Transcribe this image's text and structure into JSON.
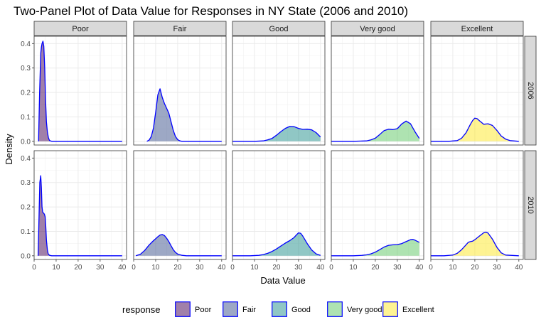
{
  "chart_data": {
    "type": "area",
    "chart_kind": "faceted density plot",
    "title": "Two-Panel Plot of Data Value for Responses in NY State (2006 and 2010)",
    "xlabel": "Data Value",
    "ylabel": "Density",
    "xlim": [
      0,
      42
    ],
    "ylim": [
      -0.015,
      0.43
    ],
    "x_ticks": [
      0,
      10,
      20,
      30,
      40
    ],
    "y_ticks": [
      0.0,
      0.1,
      0.2,
      0.3,
      0.4
    ],
    "x_tick_labels": [
      "0",
      "10",
      "20",
      "30",
      "40"
    ],
    "y_tick_labels": [
      "0.0",
      "0.1",
      "0.2",
      "0.3",
      "0.4"
    ],
    "grid": true,
    "fill_opacity": 0.5,
    "outline_color": "#0000ff",
    "columns": [
      "Poor",
      "Fair",
      "Good",
      "Very good",
      "Excellent"
    ],
    "rows": [
      "2006",
      "2010"
    ],
    "legend": {
      "title": "response",
      "position": "bottom",
      "entries": [
        {
          "label": "Poor",
          "color": "#440154"
        },
        {
          "label": "Fair",
          "color": "#3b528b"
        },
        {
          "label": "Good",
          "color": "#21908c"
        },
        {
          "label": "Very good",
          "color": "#5dc863"
        },
        {
          "label": "Excellent",
          "color": "#fde725"
        }
      ]
    },
    "panels": [
      {
        "row": "2006",
        "column": "Poor",
        "x": [
          2,
          2.5,
          3,
          3.3,
          3.6,
          4,
          4.4,
          4.8,
          5.2,
          5.6,
          6,
          6.5,
          7,
          8,
          10,
          20,
          30,
          40
        ],
        "y": [
          0,
          0.2,
          0.36,
          0.385,
          0.4,
          0.41,
          0.39,
          0.3,
          0.17,
          0.08,
          0.04,
          0.015,
          0.003,
          0,
          0,
          0,
          0,
          0
        ]
      },
      {
        "row": "2006",
        "column": "Fair",
        "x": [
          6,
          7,
          8,
          9,
          10,
          11,
          12,
          13,
          14,
          15,
          16,
          17,
          18,
          19,
          20,
          21,
          22,
          30,
          40
        ],
        "y": [
          0,
          0.005,
          0.02,
          0.055,
          0.12,
          0.19,
          0.215,
          0.18,
          0.155,
          0.135,
          0.115,
          0.08,
          0.045,
          0.02,
          0.007,
          0.002,
          0,
          0,
          0
        ]
      },
      {
        "row": "2006",
        "column": "Good",
        "x": [
          0,
          10,
          14,
          16,
          18,
          20,
          22,
          24,
          26,
          28,
          30,
          32,
          34,
          36,
          38,
          40
        ],
        "y": [
          0,
          0,
          0.002,
          0.006,
          0.012,
          0.025,
          0.04,
          0.053,
          0.061,
          0.06,
          0.053,
          0.049,
          0.05,
          0.047,
          0.036,
          0.018
        ]
      },
      {
        "row": "2006",
        "column": "Very good",
        "x": [
          0,
          10,
          16,
          18,
          20,
          22,
          24,
          26,
          28,
          30,
          32,
          34,
          36,
          38,
          40
        ],
        "y": [
          0,
          0,
          0.002,
          0.006,
          0.013,
          0.028,
          0.044,
          0.05,
          0.048,
          0.052,
          0.071,
          0.083,
          0.072,
          0.04,
          0.012
        ]
      },
      {
        "row": "2006",
        "column": "Excellent",
        "x": [
          0,
          8,
          12,
          14,
          16,
          18,
          19,
          20,
          21,
          22,
          24,
          26,
          28,
          30,
          32,
          34,
          36,
          40
        ],
        "y": [
          0,
          0,
          0.003,
          0.013,
          0.035,
          0.07,
          0.085,
          0.095,
          0.093,
          0.085,
          0.07,
          0.072,
          0.065,
          0.045,
          0.022,
          0.009,
          0.003,
          0
        ]
      },
      {
        "row": "2010",
        "column": "Poor",
        "x": [
          1.8,
          2.2,
          2.6,
          3,
          3.3,
          3.6,
          3.9,
          4.3,
          4.7,
          5,
          5.3,
          5.6,
          6,
          6.4,
          7,
          8,
          10,
          20,
          30,
          40
        ],
        "y": [
          0,
          0.15,
          0.3,
          0.328,
          0.28,
          0.2,
          0.178,
          0.175,
          0.17,
          0.16,
          0.12,
          0.065,
          0.025,
          0.008,
          0.002,
          0,
          0,
          0,
          0,
          0
        ]
      },
      {
        "row": "2010",
        "column": "Fair",
        "x": [
          1,
          3,
          5,
          7,
          9,
          10,
          11,
          12,
          13,
          14,
          15,
          16,
          17,
          18,
          19,
          20,
          22,
          24,
          30,
          40
        ],
        "y": [
          0,
          0.006,
          0.022,
          0.044,
          0.062,
          0.07,
          0.078,
          0.085,
          0.087,
          0.083,
          0.072,
          0.058,
          0.041,
          0.025,
          0.014,
          0.007,
          0.002,
          0,
          0,
          0
        ]
      },
      {
        "row": "2010",
        "column": "Good",
        "x": [
          0,
          8,
          12,
          14,
          16,
          18,
          20,
          22,
          24,
          26,
          28,
          29,
          30,
          31,
          32,
          34,
          36,
          38,
          40
        ],
        "y": [
          0,
          0,
          0.002,
          0.005,
          0.01,
          0.018,
          0.028,
          0.04,
          0.052,
          0.062,
          0.075,
          0.085,
          0.094,
          0.092,
          0.08,
          0.05,
          0.024,
          0.008,
          0.002
        ]
      },
      {
        "row": "2010",
        "column": "Very good",
        "x": [
          0,
          10,
          14,
          16,
          18,
          20,
          22,
          24,
          26,
          28,
          30,
          32,
          34,
          36,
          37,
          38,
          40
        ],
        "y": [
          0,
          0,
          0.002,
          0.004,
          0.008,
          0.015,
          0.025,
          0.036,
          0.043,
          0.045,
          0.046,
          0.05,
          0.058,
          0.066,
          0.067,
          0.064,
          0.055
        ]
      },
      {
        "row": "2010",
        "column": "Excellent",
        "x": [
          0,
          6,
          10,
          12,
          14,
          16,
          17,
          18,
          19,
          20,
          22,
          24,
          25,
          26,
          28,
          30,
          32,
          34,
          40
        ],
        "y": [
          0,
          0,
          0.003,
          0.01,
          0.025,
          0.045,
          0.055,
          0.058,
          0.06,
          0.066,
          0.08,
          0.094,
          0.097,
          0.093,
          0.068,
          0.035,
          0.012,
          0.003,
          0
        ]
      }
    ]
  }
}
